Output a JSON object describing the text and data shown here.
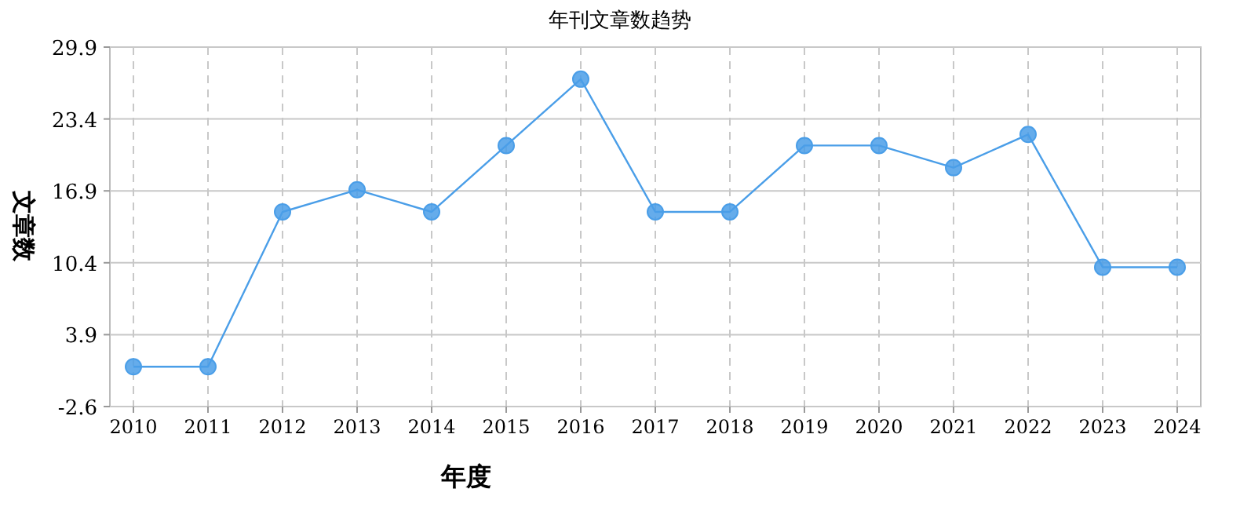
{
  "chart_data": {
    "type": "line",
    "title": "年刊文章数趋势",
    "xlabel": "年度",
    "ylabel": "文章数",
    "categories": [
      "2010",
      "2011",
      "2012",
      "2013",
      "2014",
      "2015",
      "2016",
      "2017",
      "2018",
      "2019",
      "2020",
      "2021",
      "2022",
      "2023",
      "2024"
    ],
    "series": [
      {
        "color": "#4a9ee8",
        "values": [
          1,
          1,
          15,
          17,
          15,
          21,
          27,
          15,
          15,
          21,
          21,
          19,
          22,
          10,
          10
        ]
      }
    ],
    "ylim": [
      -2.6,
      29.9
    ],
    "yticks": [
      -2.6,
      3.9,
      10.4,
      16.9,
      23.4,
      29.9
    ],
    "grid": true,
    "marker": "circle",
    "line_style": "solid"
  }
}
